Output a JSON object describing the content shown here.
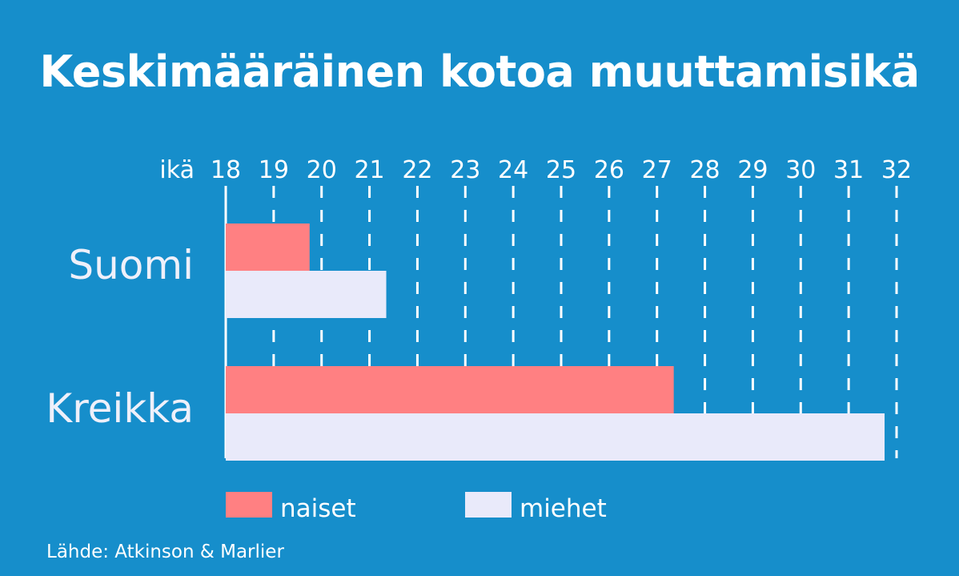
{
  "colors": {
    "background": "#168ecb",
    "naiset": "#ff8082",
    "miehet": "#e9eafa",
    "text": "#ffffff",
    "category_text": "#eef0fa"
  },
  "chart_data": {
    "type": "bar",
    "orientation": "horizontal",
    "title": "Keskimääräinen kotoa muuttamisikä",
    "axis_label": "ikä",
    "xlim": [
      18,
      32
    ],
    "ticks": [
      18,
      19,
      20,
      21,
      22,
      23,
      24,
      25,
      26,
      27,
      28,
      29,
      30,
      31,
      32
    ],
    "grid": "dashed vertical lines",
    "legend_position": "bottom",
    "categories": [
      "Suomi",
      "Kreikka"
    ],
    "series": [
      {
        "name": "naiset",
        "values": [
          19.75,
          27.35
        ]
      },
      {
        "name": "miehet",
        "values": [
          21.35,
          31.75
        ]
      }
    ],
    "source": "Lähde: Atkinson & Marlier"
  }
}
